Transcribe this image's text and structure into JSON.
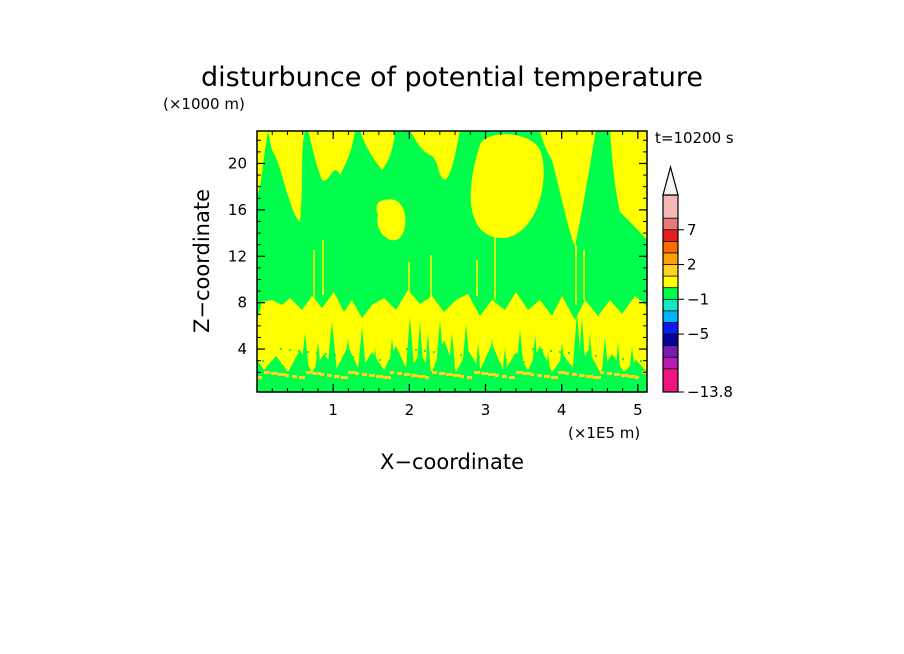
{
  "chart_data": {
    "type": "heatmap",
    "title": "disturbunce of potential temperature",
    "time_label": "t=10200 s",
    "xlabel": "X−coordinate",
    "ylabel": "Z−coordinate",
    "x_unit_label": "(×1E5 m)",
    "y_unit_label": "(×1000 m)",
    "xlim": [
      0,
      5.12
    ],
    "ylim": [
      0.3,
      22.8
    ],
    "x_ticks": [
      {
        "value": 1,
        "label": "1"
      },
      {
        "value": 2,
        "label": "2"
      },
      {
        "value": 3,
        "label": "3"
      },
      {
        "value": 4,
        "label": "4"
      },
      {
        "value": 5,
        "label": "5"
      }
    ],
    "y_ticks": [
      {
        "value": 4,
        "label": "4"
      },
      {
        "value": 8,
        "label": "8"
      },
      {
        "value": 12,
        "label": "12"
      },
      {
        "value": 16,
        "label": "16"
      },
      {
        "value": 20,
        "label": "20"
      }
    ],
    "field_colors": {
      "background_level": "#00ff4c",
      "positive_level": "#ffff00",
      "warm_level": "#ffd21e"
    },
    "colorbar": {
      "extend": "max",
      "levels": [
        {
          "color": "#f0147f"
        },
        {
          "color": "#f0147f"
        },
        {
          "color": "#b51cb0"
        },
        {
          "color": "#7a1bb4"
        },
        {
          "color": "#0a009a"
        },
        {
          "color": "#0e1bf0"
        },
        {
          "color": "#00b4ff"
        },
        {
          "color": "#16e6c8"
        },
        {
          "color": "#00ff4c"
        },
        {
          "color": "#ffff00"
        },
        {
          "color": "#ffd21e"
        },
        {
          "color": "#ffa000"
        },
        {
          "color": "#ff6a00"
        },
        {
          "color": "#e81e1e"
        },
        {
          "color": "#ea7a7a"
        },
        {
          "color": "#f5b8b4"
        },
        {
          "color": "#f5b8b4"
        }
      ],
      "labels": [
        {
          "level_index": 14,
          "label": "7"
        },
        {
          "level_index": 11,
          "label": "2"
        },
        {
          "level_index": 8,
          "label": "−1"
        },
        {
          "level_index": 5,
          "label": "−5"
        },
        {
          "level_index": 0,
          "label": "−13.8"
        }
      ],
      "top_arrow_color": "#f5f5f5"
    }
  }
}
